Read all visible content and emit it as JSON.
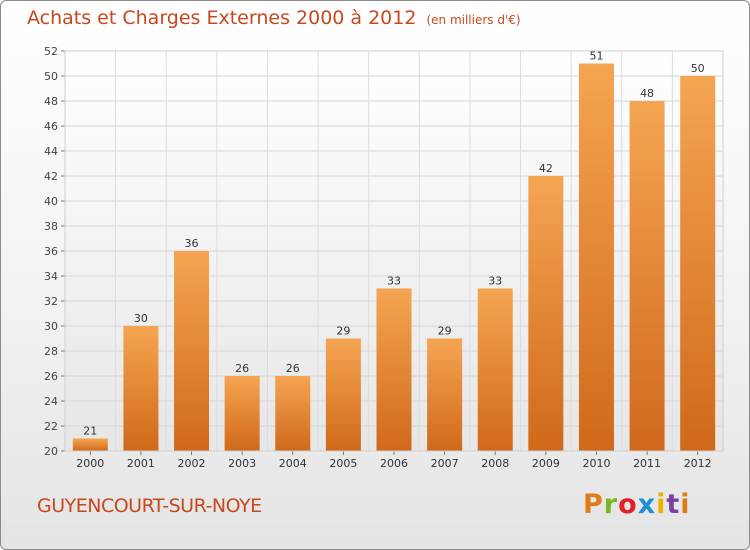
{
  "chart_data": {
    "type": "bar",
    "title": "Achats et Charges Externes 2000 à 2012",
    "subtitle": "(en milliers d'€)",
    "categories": [
      "2000",
      "2001",
      "2002",
      "2003",
      "2004",
      "2005",
      "2006",
      "2007",
      "2008",
      "2009",
      "2010",
      "2011",
      "2012"
    ],
    "values": [
      21,
      30,
      36,
      26,
      26,
      29,
      33,
      29,
      33,
      42,
      51,
      48,
      50
    ],
    "ylim": [
      20,
      52
    ],
    "yticks": [
      20,
      22,
      24,
      26,
      28,
      30,
      32,
      34,
      36,
      38,
      40,
      42,
      44,
      46,
      48,
      50,
      52
    ],
    "grid": true,
    "bar_color_top": "#f5a552",
    "bar_color_bottom": "#d0691a",
    "title_color": "#c8481e"
  },
  "footer": {
    "commune": "GUYENCOURT-SUR-NOYE",
    "brand": "Proxiti",
    "brand_colors": [
      "#e07b1a",
      "#7cb51f",
      "#e3202a",
      "#1f8fd6",
      "#f0b000",
      "#7a3fa0",
      "#e07b1a"
    ]
  }
}
